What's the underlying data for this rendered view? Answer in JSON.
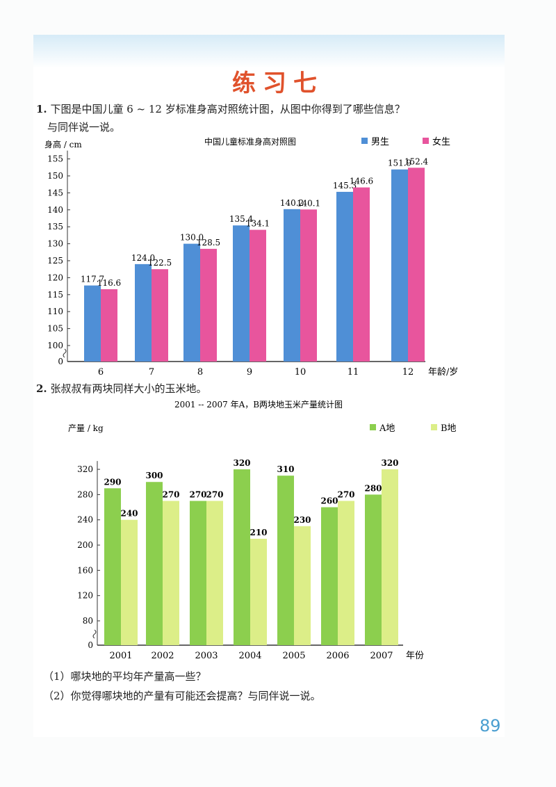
{
  "title": "练习七",
  "q1": {
    "number": "1.",
    "text": "下图是中国儿童 6 ~ 12 岁标准身高对照统计图，从图中你得到了哪些信息？",
    "text2": "与同伴说一说。"
  },
  "q2": {
    "number": "2.",
    "text": "张叔叔有两块同样大小的玉米地。",
    "sub1": "（1）哪块地的平均年产量高一些？",
    "sub2": "（2）你觉得哪块地的产量有可能还会提高？与同伴说一说。"
  },
  "page_number": "89",
  "chart_data": [
    {
      "type": "bar",
      "title": "中国儿童标准身高对照图",
      "ylabel": "身高 / cm",
      "xlabel": "年龄/岁",
      "categories": [
        "6",
        "7",
        "8",
        "9",
        "10",
        "11",
        "12"
      ],
      "series": [
        {
          "name": "男生",
          "color": "#4f8fd6",
          "values": [
            117.7,
            124.0,
            130.0,
            135.4,
            140.2,
            145.3,
            151.9
          ],
          "labels": [
            "117.7",
            "124.0",
            "130.0",
            "135.4",
            "140.2",
            "145.3",
            "151.9"
          ]
        },
        {
          "name": "女生",
          "color": "#e8559d",
          "values": [
            116.6,
            122.5,
            128.5,
            134.1,
            140.1,
            146.6,
            152.4
          ],
          "labels": [
            "116.6",
            "122.5",
            "128.5",
            "134.1",
            "140.1",
            "146.6",
            "152.4"
          ]
        }
      ],
      "yticks": [
        "0",
        "100",
        "105",
        "110",
        "115",
        "120",
        "125",
        "130",
        "135",
        "140",
        "145",
        "150",
        "155"
      ],
      "axis_break": true,
      "legend": "top-right",
      "grid": false
    },
    {
      "type": "bar",
      "title": "2001 -- 2007 年A，B两块地玉米产量统计图",
      "ylabel": "产量 / kg",
      "xlabel": "年份",
      "categories": [
        "2001",
        "2002",
        "2003",
        "2004",
        "2005",
        "2006",
        "2007"
      ],
      "series": [
        {
          "name": "A地",
          "color": "#8ccf4e",
          "values": [
            290,
            300,
            270,
            320,
            310,
            260,
            280
          ]
        },
        {
          "name": "B地",
          "color": "#dcee88",
          "values": [
            240,
            270,
            270,
            210,
            230,
            270,
            320
          ]
        }
      ],
      "yticks": [
        "0",
        "80",
        "120",
        "160",
        "200",
        "240",
        "280",
        "320"
      ],
      "axis_break": true,
      "legend": "top-right",
      "grid": false
    }
  ]
}
